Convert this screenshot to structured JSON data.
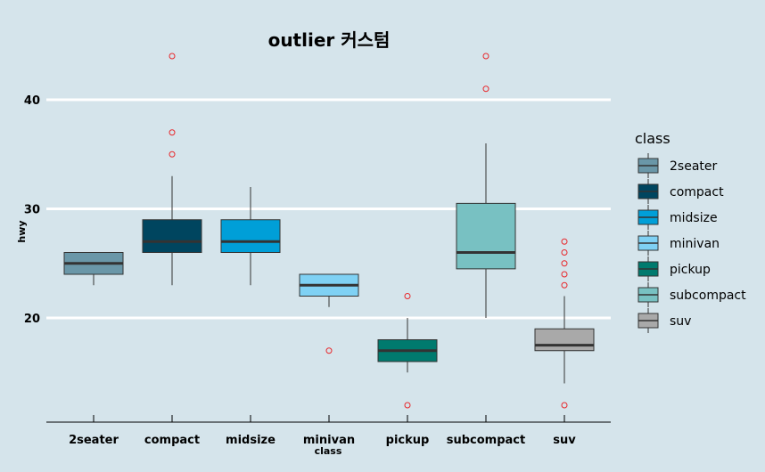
{
  "chart_data": {
    "type": "boxplot",
    "title": "outlier 커스텀",
    "xlabel": "class",
    "ylabel": "hwy",
    "ylim": [
      10.5,
      45.3
    ],
    "yticks": [
      20,
      30,
      40
    ],
    "grid": "horizontal major lines",
    "legend": {
      "title": "class",
      "position": "right"
    },
    "outlier_color": "#e8262a",
    "categories": [
      "2seater",
      "compact",
      "midsize",
      "minivan",
      "pickup",
      "subcompact",
      "suv"
    ],
    "colors": [
      "#6a97a8",
      "#00455f",
      "#009fd8",
      "#7fd1f4",
      "#007a6e",
      "#78c1c2",
      "#a9a9a9"
    ],
    "boxes": [
      {
        "whisker_low": 23,
        "q1": 24,
        "median": 25,
        "q3": 26,
        "whisker_high": 26,
        "outliers": []
      },
      {
        "whisker_low": 23,
        "q1": 26,
        "median": 27,
        "q3": 29,
        "whisker_high": 33,
        "outliers": [
          35,
          37,
          44
        ]
      },
      {
        "whisker_low": 23,
        "q1": 26,
        "median": 27,
        "q3": 29,
        "whisker_high": 32,
        "outliers": []
      },
      {
        "whisker_low": 21,
        "q1": 22,
        "median": 23,
        "q3": 24,
        "whisker_high": 24,
        "outliers": [
          17
        ]
      },
      {
        "whisker_low": 15,
        "q1": 16,
        "median": 17,
        "q3": 18,
        "whisker_high": 20,
        "outliers": [
          12,
          22
        ]
      },
      {
        "whisker_low": 20,
        "q1": 24.5,
        "median": 26,
        "q3": 30.5,
        "whisker_high": 36,
        "outliers": [
          41,
          44
        ]
      },
      {
        "whisker_low": 14,
        "q1": 17,
        "median": 17.5,
        "q3": 19,
        "whisker_high": 22,
        "outliers": [
          12,
          23,
          24,
          25,
          26,
          27
        ]
      }
    ]
  }
}
